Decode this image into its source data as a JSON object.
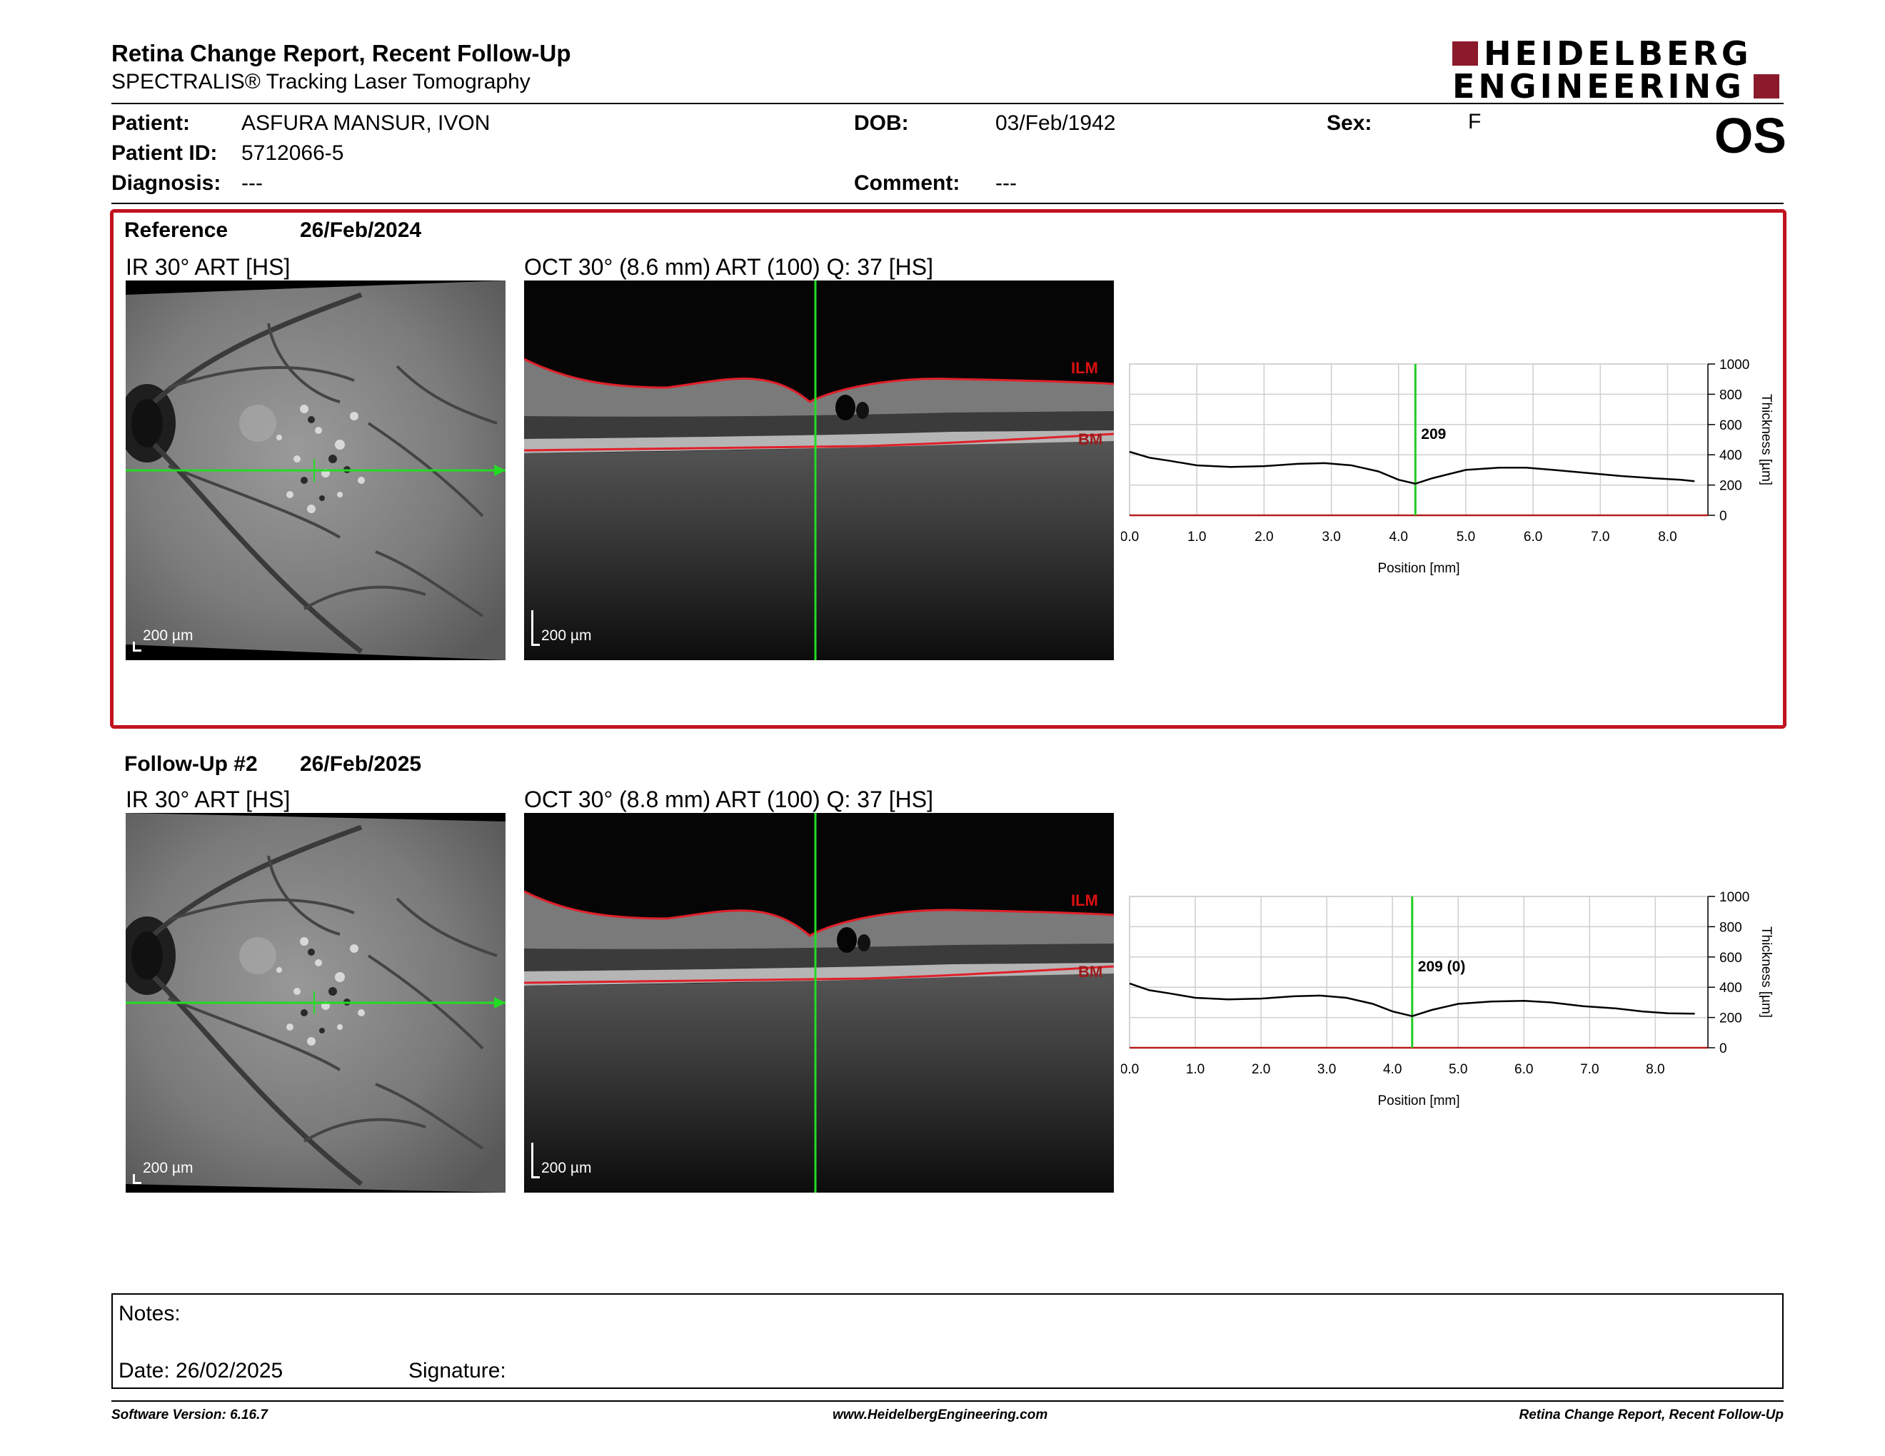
{
  "header": {
    "title": "Retina Change Report, Recent Follow-Up",
    "subtitle": "SPECTRALIS® Tracking Laser Tomography",
    "logo_line1": "HEIDELBERG",
    "logo_line2": "ENGINEERING",
    "eye": "OS"
  },
  "patient": {
    "patient_label": "Patient:",
    "patient_value": "ASFURA MANSUR, IVON",
    "id_label": "Patient ID:",
    "id_value": "5712066-5",
    "diagnosis_label": "Diagnosis:",
    "diagnosis_value": "---",
    "dob_label": "DOB:",
    "dob_value": "03/Feb/1942",
    "comment_label": "Comment:",
    "comment_value": "---",
    "sex_label": "Sex:",
    "sex_value": "F"
  },
  "reference": {
    "label": "Reference",
    "date": "26/Feb/2024",
    "ir_label": "IR 30° ART [HS]",
    "oct_label": "OCT 30° (8.6 mm) ART (100) Q: 37 [HS]",
    "scale_ir": "200 µm",
    "scale_oct": "200 µm",
    "ilm": "ILM",
    "bm": "BM",
    "thickness_label": "209"
  },
  "followup": {
    "label": "Follow-Up #2",
    "date": "26/Feb/2025",
    "ir_label": "IR 30° ART [HS]",
    "oct_label": "OCT 30° (8.8 mm) ART (100) Q: 37 [HS]",
    "scale_ir": "200 µm",
    "scale_oct": "200 µm",
    "ilm": "ILM",
    "bm": "BM",
    "thickness_label": "209 (0)"
  },
  "chart_data": [
    {
      "type": "line",
      "title": "",
      "xlabel": "Position [mm]",
      "ylabel": "Thickness [µm]",
      "xlim": [
        0,
        8.6
      ],
      "ylim": [
        0,
        1000
      ],
      "x_ticks": [
        "0.0",
        "1.0",
        "2.0",
        "3.0",
        "4.0",
        "5.0",
        "6.0",
        "7.0",
        "8.0"
      ],
      "y_ticks": [
        "0",
        "200",
        "400",
        "600",
        "800",
        "1000"
      ],
      "grid": true,
      "marker_x": 4.25,
      "marker_label": "209",
      "series": [
        {
          "x": [
            0.0,
            0.3,
            0.6,
            1.0,
            1.5,
            2.0,
            2.5,
            2.9,
            3.3,
            3.7,
            4.0,
            4.25,
            4.5,
            5.0,
            5.5,
            5.9,
            6.3,
            6.8,
            7.3,
            7.8,
            8.2,
            8.4
          ],
          "values": [
            420,
            380,
            360,
            330,
            320,
            325,
            340,
            345,
            330,
            290,
            235,
            209,
            245,
            300,
            315,
            315,
            300,
            280,
            260,
            245,
            235,
            225
          ]
        }
      ]
    },
    {
      "type": "line",
      "title": "",
      "xlabel": "Position [mm]",
      "ylabel": "Thickness [µm]",
      "xlim": [
        0,
        8.8
      ],
      "ylim": [
        0,
        1000
      ],
      "x_ticks": [
        "0.0",
        "1.0",
        "2.0",
        "3.0",
        "4.0",
        "5.0",
        "6.0",
        "7.0",
        "8.0"
      ],
      "y_ticks": [
        "0",
        "200",
        "400",
        "600",
        "800",
        "1000"
      ],
      "grid": true,
      "marker_x": 4.3,
      "marker_label": "209 (0)",
      "series": [
        {
          "x": [
            0.0,
            0.3,
            0.6,
            1.0,
            1.5,
            2.0,
            2.5,
            2.9,
            3.3,
            3.7,
            4.0,
            4.3,
            4.6,
            5.0,
            5.5,
            6.0,
            6.4,
            6.9,
            7.4,
            7.8,
            8.2,
            8.6
          ],
          "values": [
            425,
            380,
            360,
            330,
            320,
            325,
            340,
            345,
            330,
            290,
            240,
            209,
            250,
            290,
            305,
            310,
            300,
            275,
            260,
            240,
            228,
            225
          ]
        }
      ]
    }
  ],
  "notes": {
    "notes_label": "Notes:",
    "date_label": "Date: 26/02/2025",
    "signature_label": "Signature:"
  },
  "footer": {
    "software": "Software Version: 6.16.7",
    "url": "www.HeidelbergEngineering.com",
    "report": "Retina Change Report, Recent Follow-Up"
  }
}
